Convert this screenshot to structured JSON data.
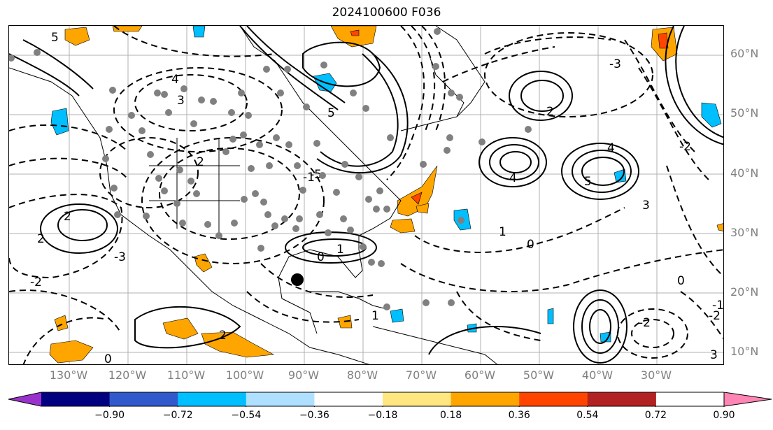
{
  "title": "2024100600 F036",
  "lat_labels": [
    "60°N",
    "50°N",
    "40°N",
    "30°N",
    "20°N",
    "10°N"
  ],
  "lon_labels": [
    "130°W",
    "120°W",
    "110°W",
    "100°W",
    "90°W",
    "80°W",
    "70°W",
    "60°W",
    "50°W",
    "40°W",
    "30°W"
  ],
  "colorbar": {
    "colors": [
      "#9932CC",
      "#000080",
      "#3158CC",
      "#00BFFF",
      "#B0E0FF",
      "#FFFFFF",
      "#FFE680",
      "#FFA500",
      "#FF4500",
      "#B22222",
      "#FF85B4"
    ],
    "ticks": [
      "−0.90",
      "−0.72",
      "−0.54",
      "−0.36",
      "−0.18",
      "0.18",
      "0.36",
      "0.54",
      "0.72",
      "0.90"
    ]
  },
  "contour_labels": [
    "5",
    "4",
    "3",
    "2",
    "1",
    "0",
    "1",
    "2",
    "-2",
    "5",
    "4",
    "-1",
    "4",
    "5",
    "2",
    "3",
    "0",
    "-3",
    "-3",
    "-2",
    "-5",
    "-2",
    "-1",
    "0",
    "1",
    "2",
    "0",
    "2",
    "3",
    "-2"
  ]
}
